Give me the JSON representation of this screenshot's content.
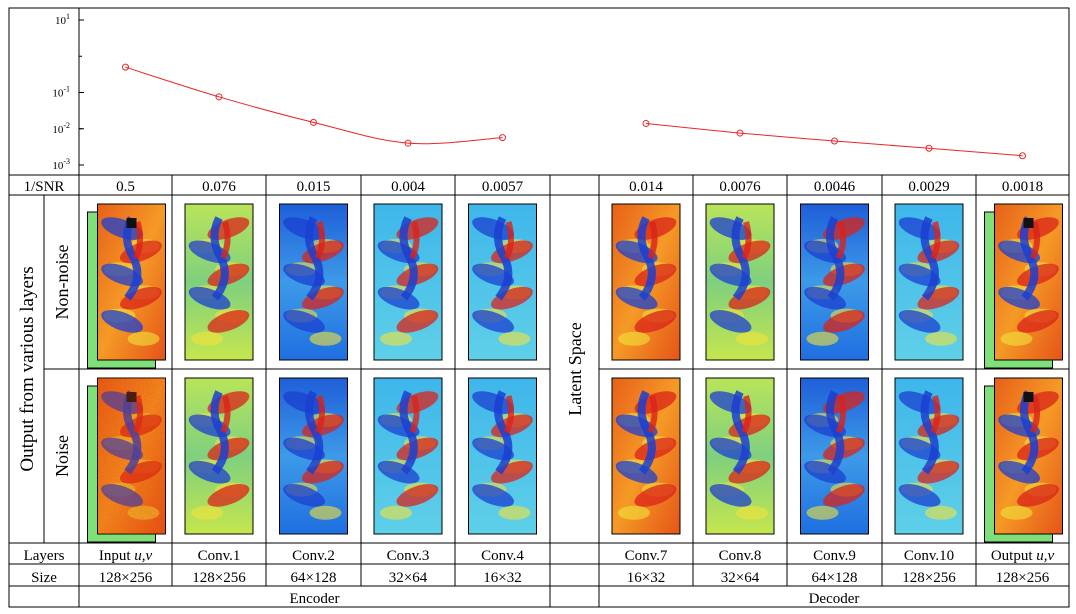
{
  "chart_data": {
    "type": "line",
    "yscale": "log",
    "ylim": [
      0.001,
      10
    ],
    "y_tick_labels": [
      {
        "base": "10",
        "exp": "1"
      },
      {
        "base": "10",
        "exp": "-1"
      },
      {
        "base": "10",
        "exp": "-2"
      },
      {
        "base": "10",
        "exp": "-3"
      }
    ],
    "y_tick_values": [
      10,
      0.1,
      0.01,
      0.001
    ],
    "series": [
      {
        "values": [
          0.5,
          0.076,
          0.015,
          0.004,
          0.0057
        ]
      },
      {
        "values": [
          0.014,
          0.0076,
          0.0046,
          0.0029,
          0.0018
        ]
      }
    ],
    "line_color": "#e8282a"
  },
  "table": {
    "snr_label": "1/SNR",
    "layers_label": "Layers",
    "size_label": "Size",
    "side_label": "Output from various layers",
    "row_nonnoise": "Non-noise",
    "row_noise": "Noise",
    "latent_label": "Latent Space",
    "encoder_label": "Encoder",
    "decoder_label": "Decoder",
    "columns": [
      {
        "snr": "0.5",
        "layer": "Input",
        "layer_var": "u,v",
        "size": "128×256",
        "style": "input"
      },
      {
        "snr": "0.076",
        "layer": "Conv.1",
        "size": "128×256",
        "style": "c1"
      },
      {
        "snr": "0.015",
        "layer": "Conv.2",
        "size": "64×128",
        "style": "c2"
      },
      {
        "snr": "0.004",
        "layer": "Conv.3",
        "size": "32×64",
        "style": "c3"
      },
      {
        "snr": "0.0057",
        "layer": "Conv.4",
        "size": "16×32",
        "style": "c4"
      },
      {
        "snr": "0.014",
        "layer": "Conv.7",
        "size": "16×32",
        "style": "c7"
      },
      {
        "snr": "0.0076",
        "layer": "Conv.8",
        "size": "32×64",
        "style": "c8"
      },
      {
        "snr": "0.0046",
        "layer": "Conv.9",
        "size": "64×128",
        "style": "c9"
      },
      {
        "snr": "0.0029",
        "layer": "Conv.10",
        "size": "128×256",
        "style": "c10"
      },
      {
        "snr": "0.0018",
        "layer": "Output",
        "layer_var": "u,v",
        "size": "128×256",
        "style": "output"
      }
    ]
  }
}
